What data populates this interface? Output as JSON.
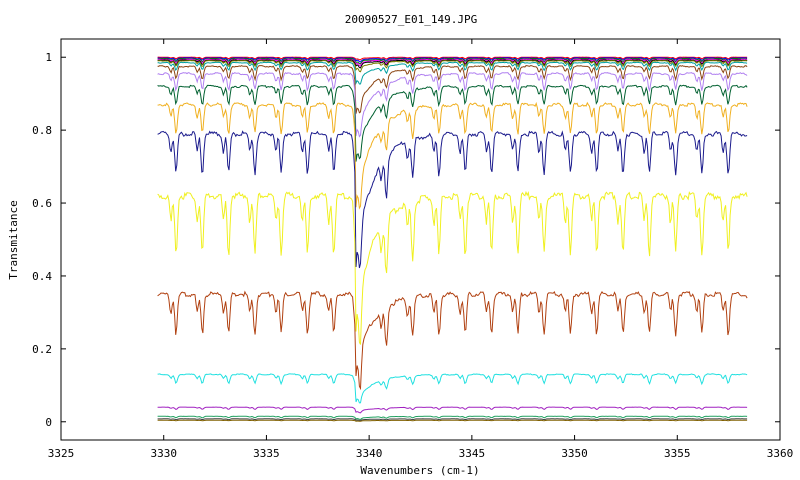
{
  "chart_data": {
    "type": "line",
    "title": "20090527_E01_149.JPG",
    "xlabel": "Wavenumbers (cm-1)",
    "ylabel": "Transmitance",
    "xlim": [
      3325,
      3360
    ],
    "ylim": [
      -0.05,
      1.05
    ],
    "xticks": [
      "3325",
      "3330",
      "3335",
      "3340",
      "3345",
      "3350",
      "3355",
      "3360"
    ],
    "yticks": [
      "0",
      "0.2",
      "0.4",
      "0.6",
      "0.8",
      "1"
    ],
    "x_range": [
      3329.7,
      3358.4
    ],
    "line_spacing": 1.28,
    "q_branch": 3339.35,
    "grid": false,
    "legend": "none",
    "series": [
      {
        "color": "#ff0000",
        "baseline": 1.0,
        "depth": 0.004,
        "qdepth": 0.004
      },
      {
        "color": "#0000ff",
        "baseline": 0.998,
        "depth": 0.006,
        "qdepth": 0.006
      },
      {
        "color": "#008000",
        "baseline": 0.996,
        "depth": 0.008,
        "qdepth": 0.008
      },
      {
        "color": "#ff00ff",
        "baseline": 0.994,
        "depth": 0.01,
        "qdepth": 0.01
      },
      {
        "color": "#000000",
        "baseline": 0.992,
        "depth": 0.012,
        "qdepth": 0.012
      },
      {
        "color": "#808000",
        "baseline": 0.99,
        "depth": 0.015,
        "qdepth": 0.02
      },
      {
        "color": "#00a0a0",
        "baseline": 0.985,
        "depth": 0.02,
        "qdepth": 0.05
      },
      {
        "color": "#8b4513",
        "baseline": 0.975,
        "depth": 0.035,
        "qdepth": 0.12
      },
      {
        "color": "#b080f0",
        "baseline": 0.955,
        "depth": 0.045,
        "qdepth": 0.16
      },
      {
        "color": "#006030",
        "baseline": 0.92,
        "depth": 0.05,
        "qdepth": 0.19
      },
      {
        "color": "#f0b020",
        "baseline": 0.87,
        "depth": 0.08,
        "qdepth": 0.26
      },
      {
        "color": "#1a1a8c",
        "baseline": 0.79,
        "depth": 0.11,
        "qdepth": 0.33
      },
      {
        "color": "#f0f020",
        "baseline": 0.62,
        "depth": 0.16,
        "qdepth": 0.33
      },
      {
        "color": "#b04010",
        "baseline": 0.35,
        "depth": 0.11,
        "qdepth": 0.19
      },
      {
        "color": "#20e0e0",
        "baseline": 0.13,
        "depth": 0.025,
        "qdepth": 0.07
      },
      {
        "color": "#a020c0",
        "baseline": 0.04,
        "depth": 0.006,
        "qdepth": 0.012
      },
      {
        "color": "#20a060",
        "baseline": 0.015,
        "depth": 0.004,
        "qdepth": 0.006
      },
      {
        "color": "#404040",
        "baseline": 0.008,
        "depth": 0.002,
        "qdepth": 0.003
      },
      {
        "color": "#806000",
        "baseline": 0.004,
        "depth": 0.001,
        "qdepth": 0.002
      }
    ]
  }
}
